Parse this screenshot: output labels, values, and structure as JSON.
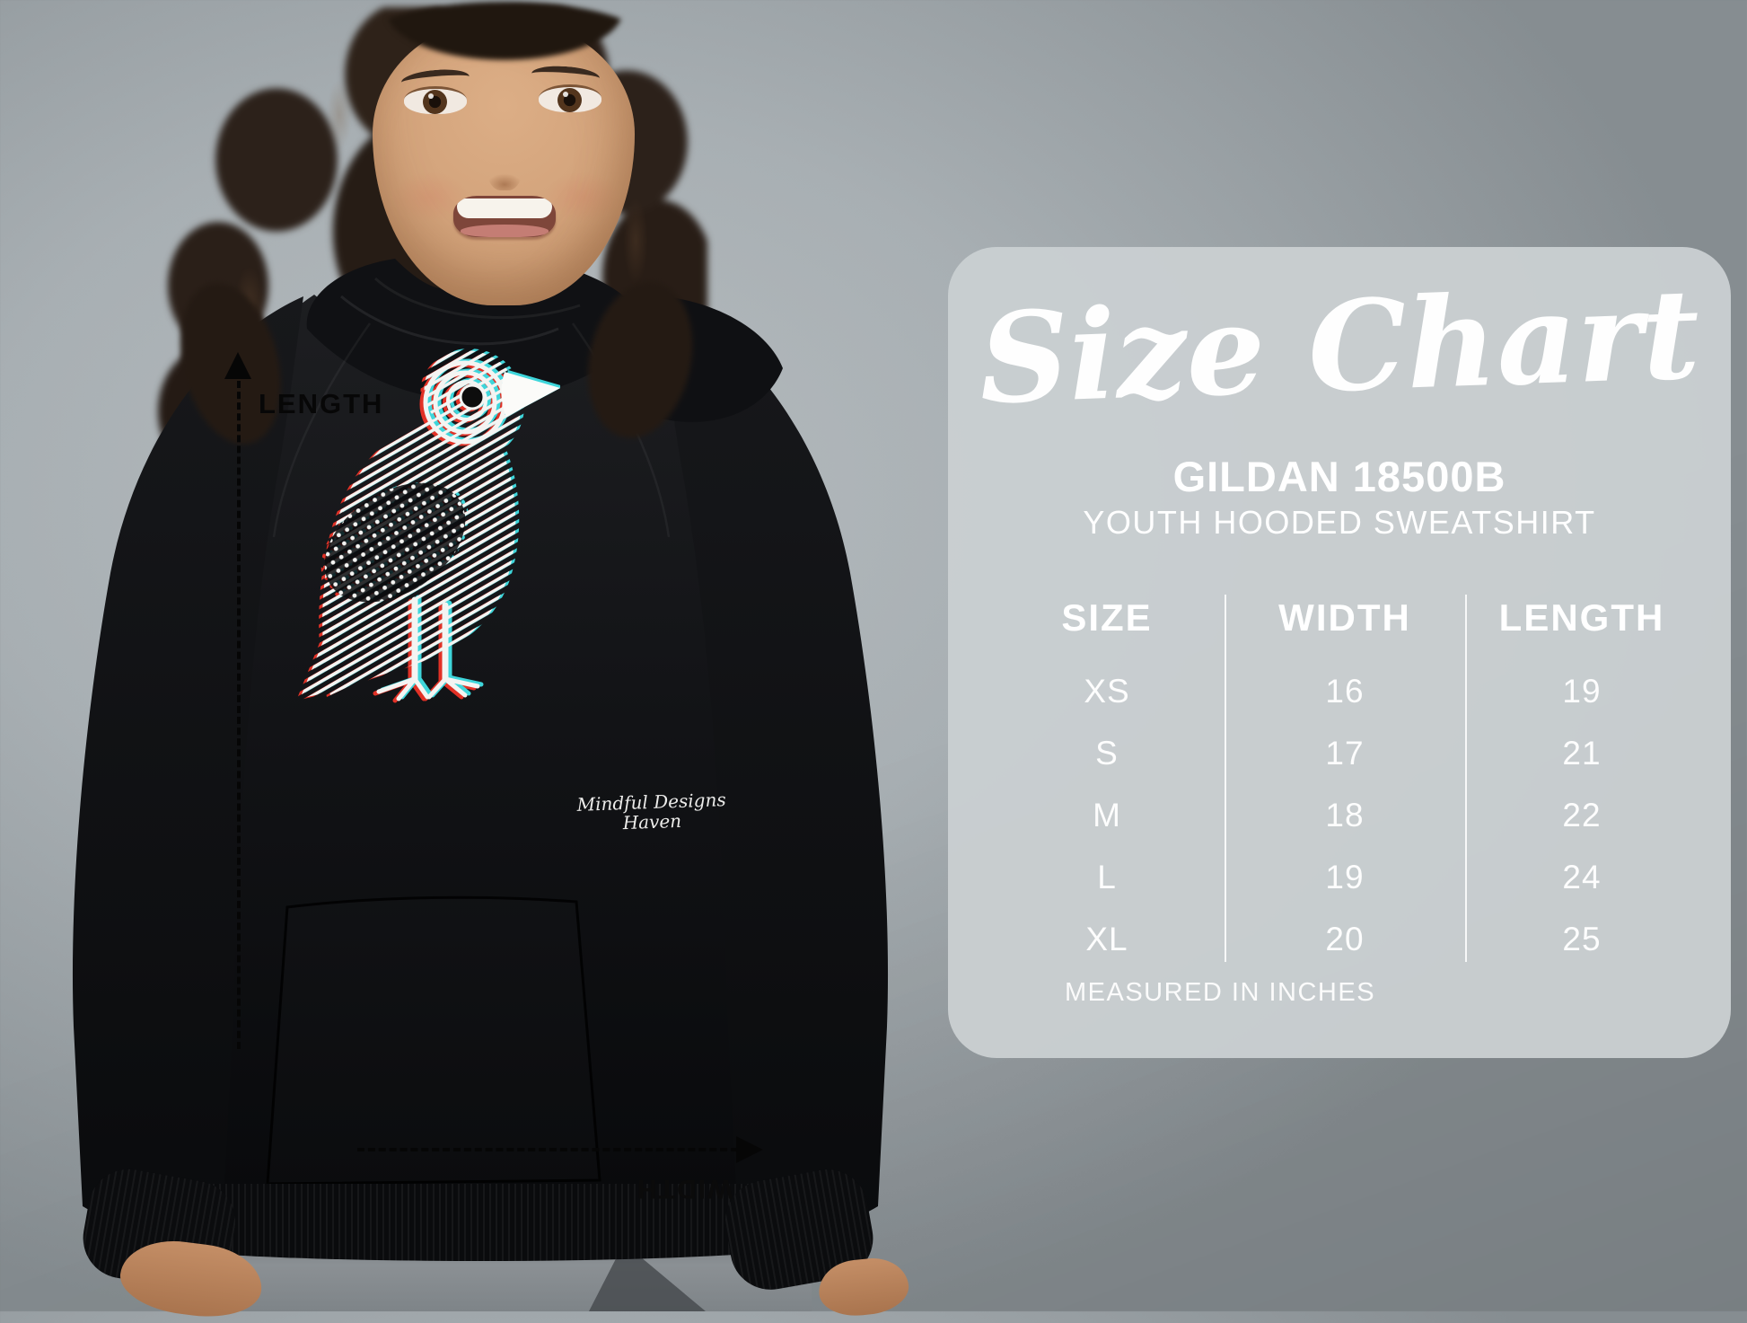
{
  "photo_overlay": {
    "length_label": "LENGTH",
    "width_label": "WIDTH",
    "brand_line1": "Mindful Designs",
    "brand_line2": "Haven"
  },
  "panel": {
    "title": "Size Chart",
    "product_code": "GILDAN 18500B",
    "product_type": "YOUTH HOODED SWEATSHIRT",
    "footnote": "MEASURED IN INCHES",
    "bg_color": "#c9ced1",
    "text_color": "#ffffff"
  },
  "chart_data": {
    "type": "table",
    "title": "Size Chart",
    "subtitle": "GILDAN 18500B YOUTH HOODED SWEATSHIRT",
    "columns": [
      "SIZE",
      "WIDTH",
      "LENGTH"
    ],
    "rows": [
      [
        "XS",
        "16",
        "19"
      ],
      [
        "S",
        "17",
        "21"
      ],
      [
        "M",
        "18",
        "22"
      ],
      [
        "L",
        "19",
        "24"
      ],
      [
        "XL",
        "20",
        "25"
      ]
    ],
    "units": "inches",
    "notes": "MEASURED IN INCHES"
  },
  "bird_graphic_colors": {
    "red": "#e23126",
    "cyan": "#3ed6db",
    "white": "#f4f4f2"
  }
}
